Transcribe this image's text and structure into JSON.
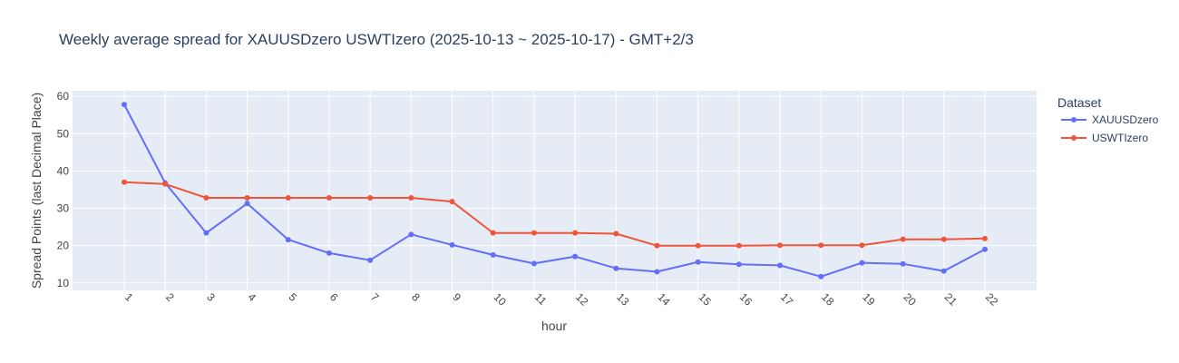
{
  "chart_data": {
    "type": "line",
    "title": "Weekly average spread for  XAUUSDzero USWTIzero (2025-10-13 ~ 2025-10-17) - GMT+2/3",
    "xlabel": "hour",
    "ylabel": "Spread Points (last Decimal Place)",
    "ylim": [
      8,
      61.5
    ],
    "yticks": [
      10,
      20,
      30,
      40,
      50,
      60
    ],
    "grid": true,
    "legend_title": "Dataset",
    "legend_position": "top-right",
    "x": [
      "1",
      "2",
      "3",
      "4",
      "5",
      "6",
      "7",
      "8",
      "9",
      "10",
      "11",
      "12",
      "13",
      "14",
      "15",
      "16",
      "17",
      "18",
      "19",
      "20",
      "21",
      "22"
    ],
    "series": [
      {
        "name": "XAUUSDzero",
        "color": "#636efa",
        "values": [
          57.8,
          36.8,
          23.4,
          31.3,
          21.6,
          18.0,
          16.1,
          23.0,
          20.2,
          17.5,
          15.2,
          17.1,
          13.9,
          13.0,
          15.6,
          15.0,
          14.7,
          11.7,
          15.4,
          15.1,
          13.2,
          19.0
        ]
      },
      {
        "name": "USWTIzero",
        "color": "#ef553b",
        "values": [
          37.0,
          36.5,
          32.8,
          32.8,
          32.8,
          32.8,
          32.8,
          32.8,
          31.8,
          23.4,
          23.4,
          23.4,
          23.2,
          20.0,
          20.0,
          20.0,
          20.1,
          20.1,
          20.1,
          21.7,
          21.7,
          21.9
        ]
      }
    ]
  },
  "colors": {
    "plot_bg": "#e5ecf6",
    "grid": "#ffffff",
    "text": "#444444",
    "title": "#2a3f5f"
  }
}
